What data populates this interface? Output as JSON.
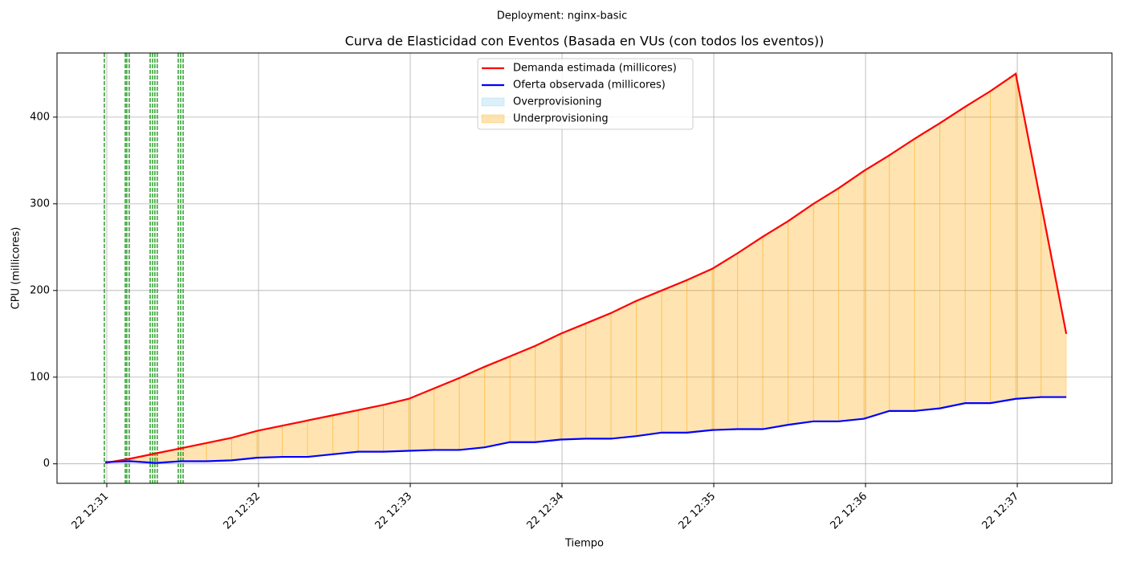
{
  "chart_data": {
    "type": "line",
    "suptitle": "Deployment: nginx-basic",
    "title": "Curva de Elasticidad con Eventos (Basada en VUs (con todos los eventos))",
    "xlabel": "Tiempo",
    "ylabel": "CPU (millicores)",
    "x": [
      750.99,
      751.157,
      751.323,
      751.49,
      751.657,
      751.823,
      751.99,
      752.157,
      752.323,
      752.49,
      752.657,
      752.823,
      752.99,
      753.157,
      753.323,
      753.49,
      753.657,
      753.823,
      753.99,
      754.157,
      754.323,
      754.49,
      754.657,
      754.823,
      754.99,
      755.157,
      755.323,
      755.49,
      755.657,
      755.823,
      755.99,
      756.157,
      756.323,
      756.49,
      756.657,
      756.823,
      756.99,
      757.157,
      757.323
    ],
    "series": [
      {
        "name": "Demanda estimada (millicores)",
        "color": "#ff0000",
        "values": [
          1,
          6,
          12,
          18,
          24,
          30,
          38,
          44,
          50,
          56,
          62,
          68,
          75,
          87,
          99,
          112,
          124,
          136,
          150,
          162,
          174,
          188,
          200,
          212,
          225,
          243,
          262,
          280,
          300,
          318,
          338,
          356,
          375,
          393,
          412,
          430,
          450,
          300,
          150
        ]
      },
      {
        "name": "Oferta observada (millicores)",
        "color": "#0000ff",
        "values": [
          2,
          3,
          1,
          3,
          3,
          4,
          7,
          8,
          8,
          11,
          14,
          14,
          15,
          16,
          16,
          19,
          25,
          25,
          28,
          29,
          29,
          32,
          36,
          36,
          39,
          40,
          40,
          45,
          49,
          49,
          52,
          61,
          61,
          64,
          70,
          70,
          75,
          77,
          77
        ]
      }
    ],
    "fills": [
      {
        "name": "Overprovisioning",
        "color": "#87ceeb",
        "alpha": 0.3
      },
      {
        "name": "Underprovisioning",
        "color": "#ffa500",
        "alpha": 0.3
      }
    ],
    "events": {
      "color": "#2ca02c",
      "x": [
        750.984,
        751.122,
        751.132,
        751.148,
        751.286,
        751.302,
        751.317,
        751.333,
        751.471,
        751.487,
        751.503
      ]
    },
    "xlim": [
      750.672,
      757.624
    ],
    "ylim": [
      -22.5,
      474
    ],
    "xticks": [
      {
        "value": 751,
        "label": "22 12:31"
      },
      {
        "value": 752,
        "label": "22 12:32"
      },
      {
        "value": 753,
        "label": "22 12:33"
      },
      {
        "value": 754,
        "label": "22 12:34"
      },
      {
        "value": 755,
        "label": "22 12:35"
      },
      {
        "value": 756,
        "label": "22 12:36"
      },
      {
        "value": 757,
        "label": "22 12:37"
      }
    ],
    "yticks": [
      0,
      100,
      200,
      300,
      400
    ],
    "grid": true,
    "legend": "upper center"
  }
}
